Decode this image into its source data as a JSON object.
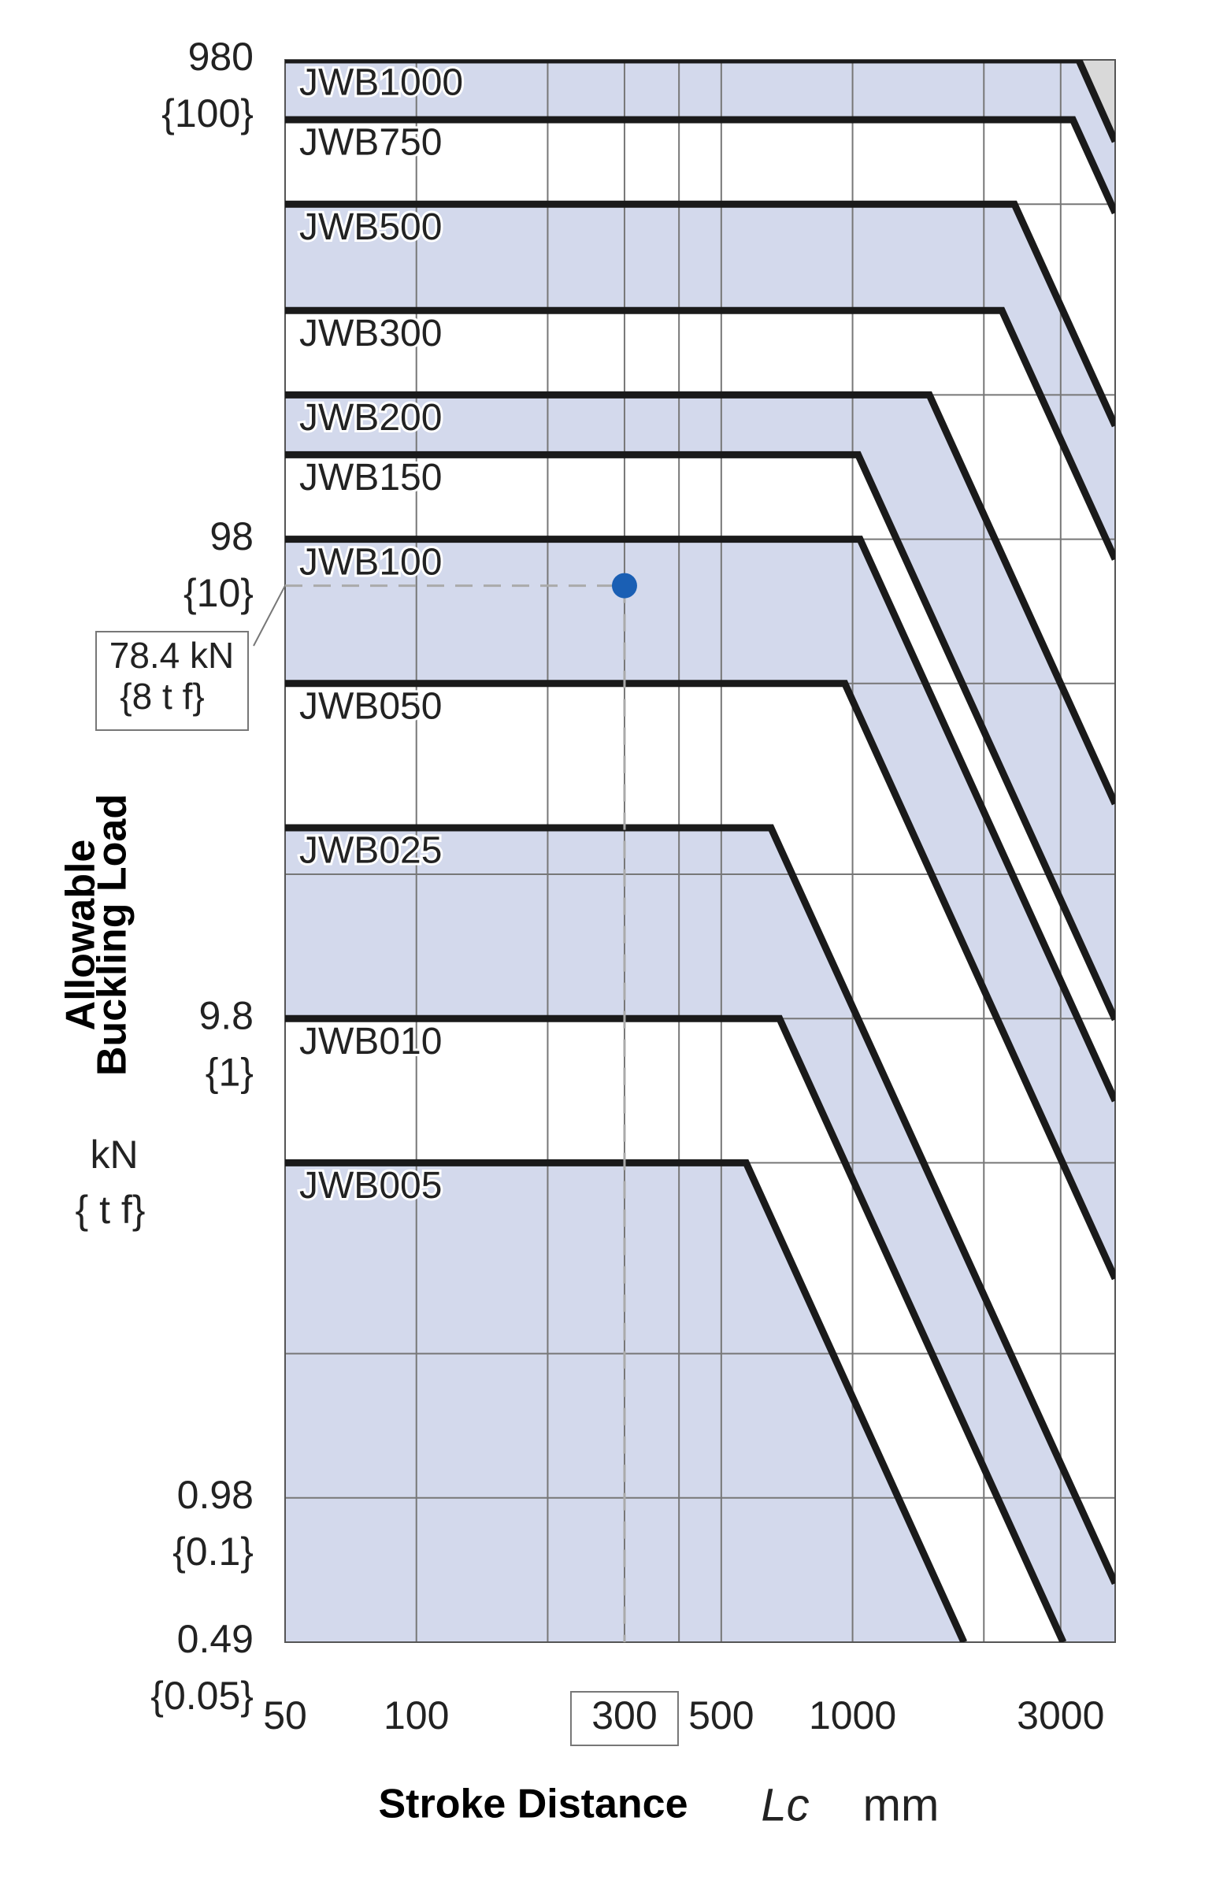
{
  "chart_data": {
    "type": "line",
    "x_log": true,
    "y_log": true,
    "xlim": [
      50,
      4000
    ],
    "ylim": [
      0.49,
      980
    ],
    "xticks": [
      50,
      100,
      300,
      500,
      1000,
      3000
    ],
    "yticks": [
      0.49,
      0.98,
      9.8,
      98,
      980
    ],
    "ytick_sublabels": [
      "{0.05}",
      "{0.1}",
      "{1}",
      "{10}",
      "{100}"
    ],
    "x_minor_grid": [
      200,
      400,
      2000
    ],
    "y_minor_grid": [
      490,
      196,
      49,
      19.6,
      4.9,
      1.96
    ],
    "grid": true,
    "band_color": "#d3d9ec",
    "corner_color": "#d9d9d9",
    "y_label": [
      "Allowable",
      "Buckling Load"
    ],
    "y_unit": [
      "kN",
      "{ t f}"
    ],
    "x_label": "Stroke Distance",
    "x_symbol": "Lc",
    "x_unit": "mm",
    "series": [
      {
        "name": "JWB1000",
        "color": "#1a1a1a",
        "x": [
          50,
          3300,
          4000
        ],
        "values": [
          980,
          980,
          662
        ]
      },
      {
        "name": "JWB750",
        "color": "#1a1a1a",
        "x": [
          50,
          3200,
          4000
        ],
        "values": [
          735,
          735,
          470
        ]
      },
      {
        "name": "JWB500",
        "color": "#1a1a1a",
        "x": [
          50,
          2350,
          4000
        ],
        "values": [
          490,
          490,
          169
        ]
      },
      {
        "name": "JWB300",
        "color": "#1a1a1a",
        "x": [
          50,
          2200,
          4000
        ],
        "values": [
          294,
          294,
          89
        ]
      },
      {
        "name": "JWB200",
        "color": "#1a1a1a",
        "x": [
          50,
          1500,
          4000
        ],
        "values": [
          196,
          196,
          27.5
        ]
      },
      {
        "name": "JWB150",
        "color": "#1a1a1a",
        "x": [
          50,
          1030,
          4000
        ],
        "values": [
          147,
          147,
          9.75
        ]
      },
      {
        "name": "JWB100",
        "color": "#1a1a1a",
        "x": [
          50,
          1040,
          4000
        ],
        "values": [
          98,
          98,
          6.6
        ]
      },
      {
        "name": "JWB050",
        "color": "#1a1a1a",
        "x": [
          50,
          960,
          4000
        ],
        "values": [
          49,
          49,
          2.81
        ]
      },
      {
        "name": "JWB025",
        "color": "#1a1a1a",
        "x": [
          50,
          650,
          4000
        ],
        "values": [
          24.5,
          24.5,
          0.65
        ]
      },
      {
        "name": "JWB010",
        "color": "#1a1a1a",
        "x": [
          50,
          680,
          3040
        ],
        "values": [
          9.8,
          9.8,
          0.49
        ]
      },
      {
        "name": "JWB005",
        "color": "#1a1a1a",
        "x": [
          50,
          570,
          1800
        ],
        "values": [
          4.9,
          4.9,
          0.49
        ]
      }
    ],
    "highlight": {
      "x": 300,
      "y": 78.4,
      "color": "#1a5fb4",
      "label": [
        "78.4 kN",
        "{8 t f}"
      ]
    }
  }
}
